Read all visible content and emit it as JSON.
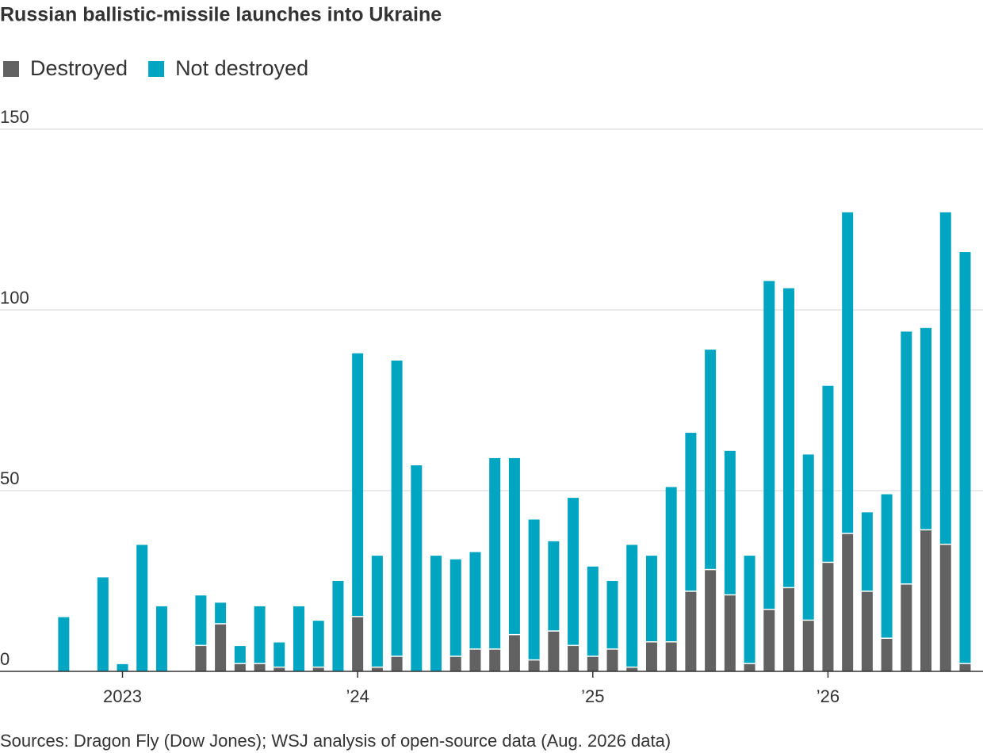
{
  "chart_data": {
    "type": "stacked_bar",
    "title": "Russian ballistic-missile launches into Ukraine",
    "source": "Sources: Dragon Fly (Dow Jones); WSJ analysis of open-source data (Aug. 2026 data)",
    "categories": [
      null,
      null,
      null,
      "2023",
      null,
      null,
      null,
      null,
      null,
      null,
      null,
      null,
      null,
      null,
      null,
      "’24",
      null,
      null,
      null,
      null,
      null,
      null,
      null,
      null,
      null,
      null,
      null,
      "’25",
      null,
      null,
      null,
      null,
      null,
      null,
      null,
      null,
      null,
      null,
      null,
      "’26",
      null,
      null,
      null,
      null,
      null,
      null,
      null
    ],
    "series": [
      {
        "name": "Destroyed",
        "color": "#626262",
        "values": [
          0,
          0,
          0,
          0,
          0,
          0,
          0,
          7,
          13,
          2,
          2,
          1,
          0,
          1,
          0,
          15,
          1,
          4,
          0,
          0,
          4,
          6,
          6,
          10,
          3,
          11,
          7,
          4,
          6,
          1,
          8,
          8,
          22,
          28,
          21,
          2,
          17,
          23,
          14,
          30,
          38,
          22,
          9,
          24,
          39,
          35,
          2
        ]
      },
      {
        "name": "Not destroyed",
        "color": "#00a5c2",
        "values": [
          15,
          0,
          26,
          2,
          35,
          18,
          0,
          14,
          6,
          5,
          16,
          7,
          18,
          13,
          25,
          73,
          31,
          82,
          57,
          32,
          27,
          27,
          53,
          49,
          39,
          25,
          41,
          25,
          19,
          34,
          24,
          43,
          44,
          61,
          40,
          30,
          91,
          83,
          46,
          49,
          89,
          22,
          40,
          70,
          56,
          92,
          114
        ]
      }
    ],
    "ylim": [
      0,
      150
    ],
    "yticks": [
      0,
      50,
      100,
      150
    ],
    "grid": true
  }
}
